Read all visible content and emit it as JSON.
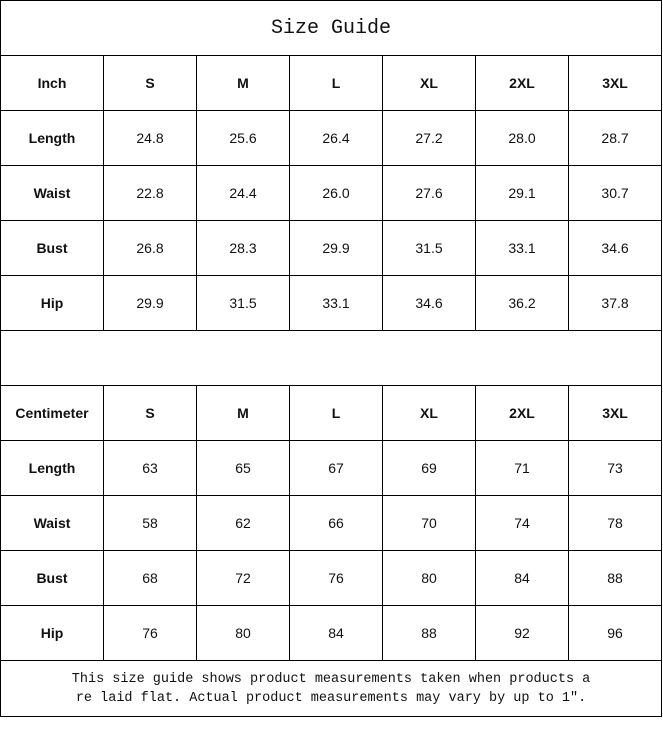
{
  "title": "Size Guide",
  "sizes": [
    "S",
    "M",
    "L",
    "XL",
    "2XL",
    "3XL"
  ],
  "inch": {
    "label": "Inch",
    "rows": [
      {
        "name": "Length",
        "values": [
          "24.8",
          "25.6",
          "26.4",
          "27.2",
          "28.0",
          "28.7"
        ]
      },
      {
        "name": "Waist",
        "values": [
          "22.8",
          "24.4",
          "26.0",
          "27.6",
          "29.1",
          "30.7"
        ]
      },
      {
        "name": "Bust",
        "values": [
          "26.8",
          "28.3",
          "29.9",
          "31.5",
          "33.1",
          "34.6"
        ]
      },
      {
        "name": "Hip",
        "values": [
          "29.9",
          "31.5",
          "33.1",
          "34.6",
          "36.2",
          "37.8"
        ]
      }
    ]
  },
  "centimeter": {
    "label": "Centimeter",
    "rows": [
      {
        "name": "Length",
        "values": [
          "63",
          "65",
          "67",
          "69",
          "71",
          "73"
        ]
      },
      {
        "name": "Waist",
        "values": [
          "58",
          "62",
          "66",
          "70",
          "74",
          "78"
        ]
      },
      {
        "name": "Bust",
        "values": [
          "68",
          "72",
          "76",
          "80",
          "84",
          "88"
        ]
      },
      {
        "name": "Hip",
        "values": [
          "76",
          "80",
          "84",
          "88",
          "92",
          "96"
        ]
      }
    ]
  },
  "note_lines": [
    "This size guide shows product measurements taken when products a",
    "re laid flat. Actual product measurements may vary by up to 1″."
  ]
}
